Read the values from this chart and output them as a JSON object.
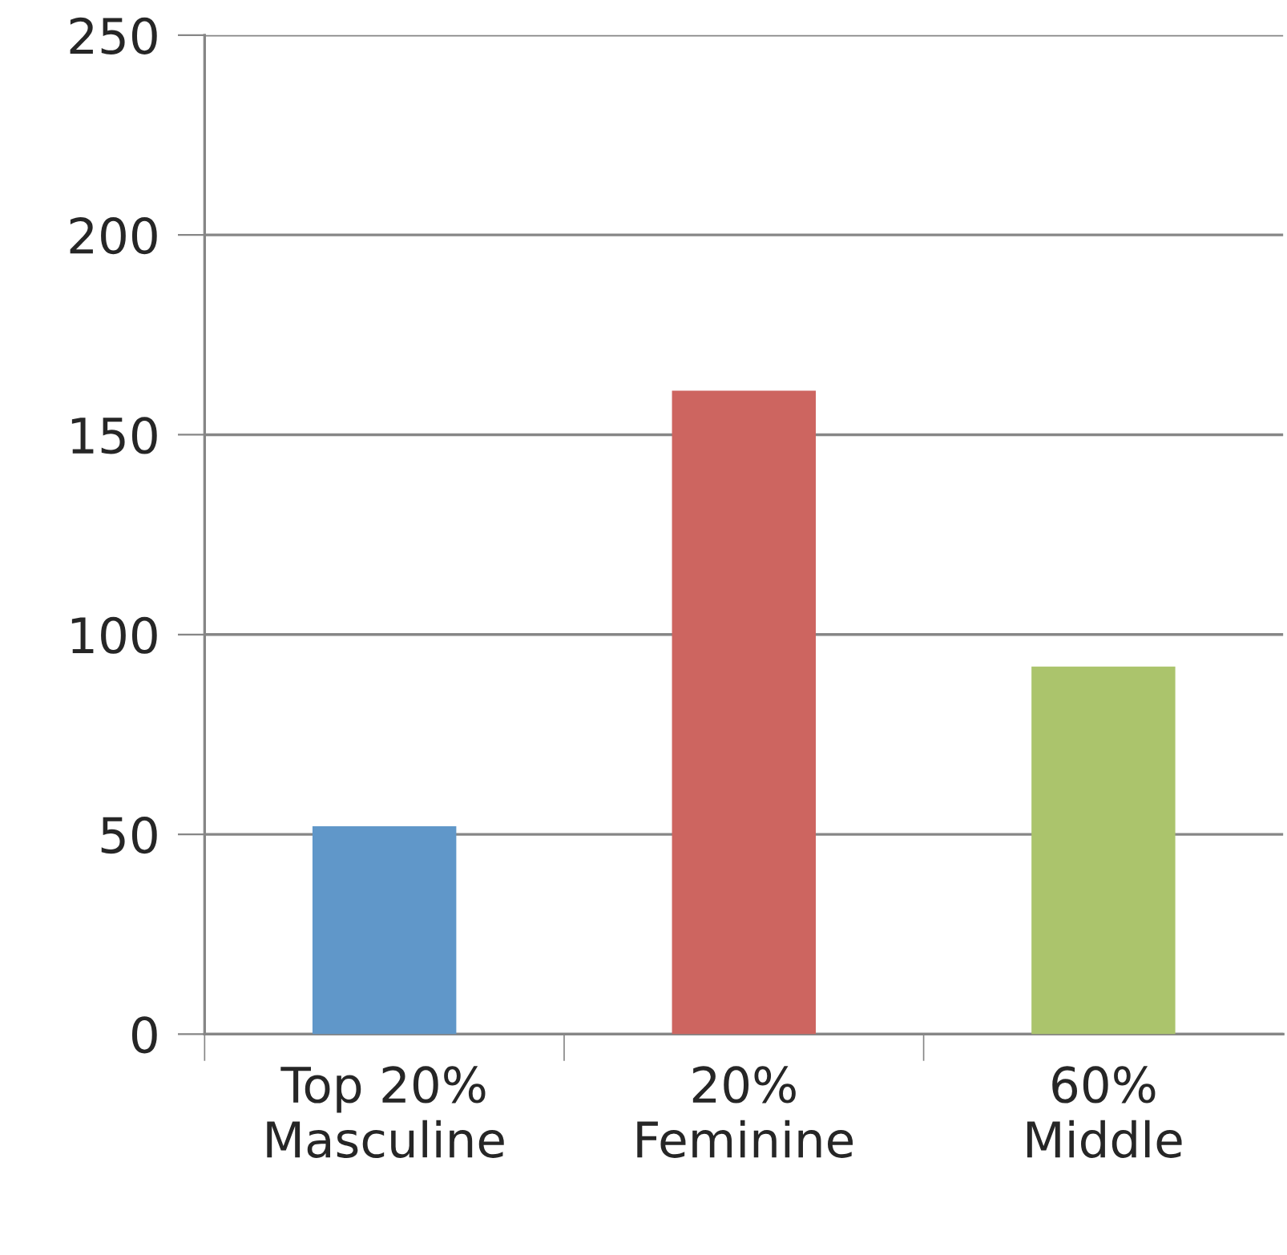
{
  "chart_data": {
    "type": "bar",
    "categories": [
      "Top 20%\nMasculine",
      "20%\nFeminine",
      "60%\nMiddle"
    ],
    "values": [
      52,
      161,
      92
    ],
    "colors": [
      "#6097c9",
      "#cd6560",
      "#abc46c"
    ],
    "ylim": [
      0,
      250
    ],
    "yticks": [
      0,
      50,
      100,
      150,
      200,
      250
    ],
    "grid": "y"
  }
}
